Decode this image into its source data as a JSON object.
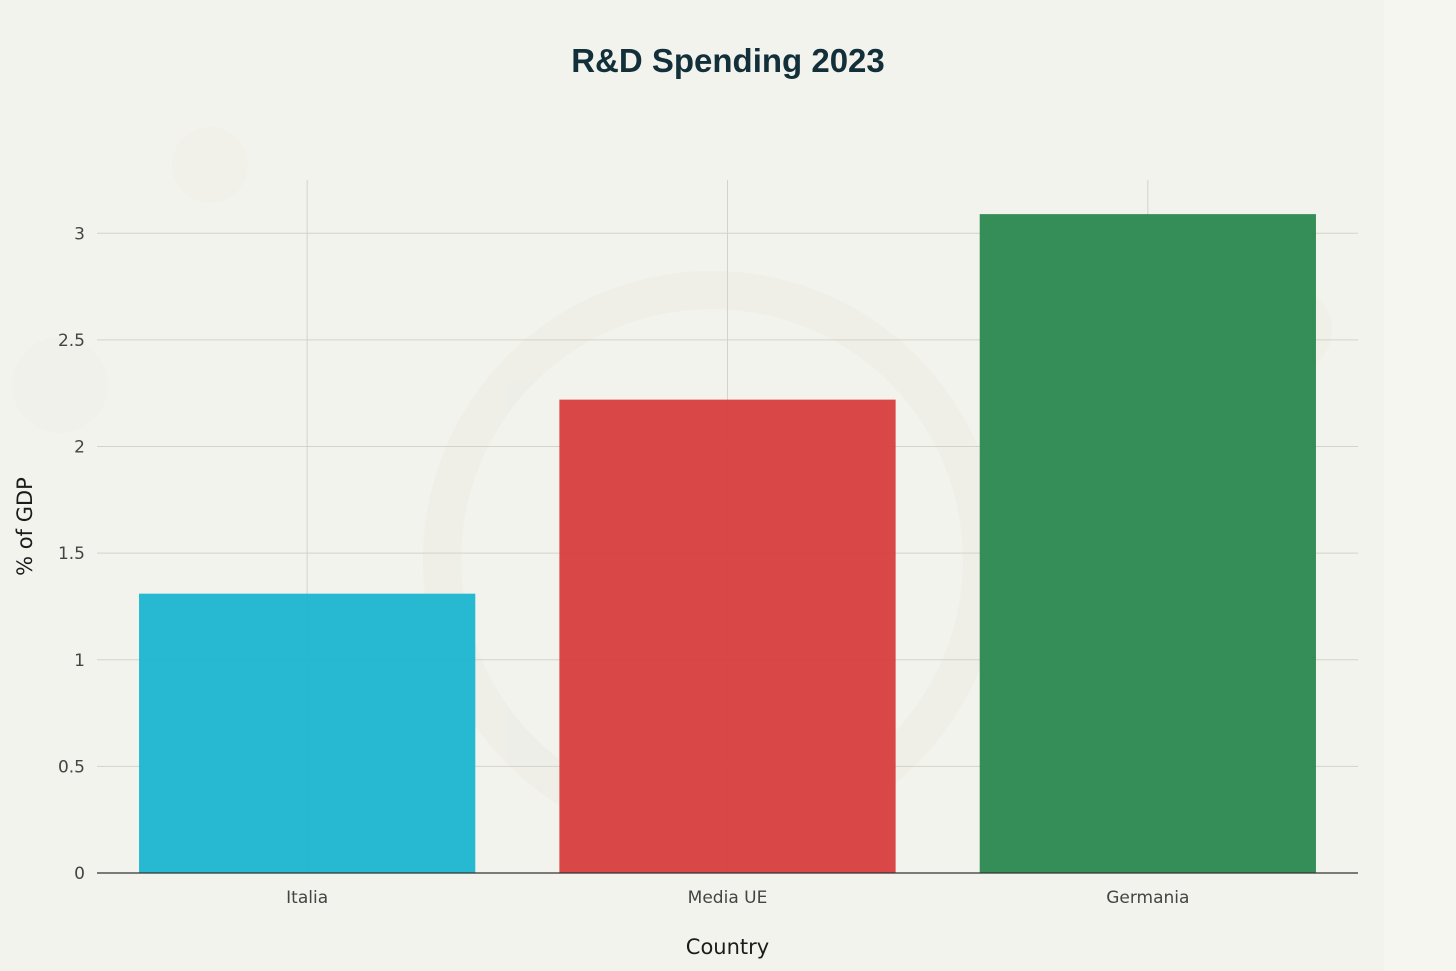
{
  "chart_data": {
    "type": "bar",
    "title": "R&D Spending 2023",
    "xlabel": "Country",
    "ylabel": "% of GDP",
    "categories": [
      "Italia",
      "Media UE",
      "Germania"
    ],
    "values": [
      1.31,
      2.22,
      3.09
    ],
    "colors": [
      "#1fb7cf",
      "#d94141",
      "#2e8a52"
    ],
    "ylim": [
      0,
      3.25
    ],
    "yticks": [
      0,
      0.5,
      1,
      1.5,
      2,
      2.5,
      3
    ],
    "ytick_labels": [
      "0",
      "0.5",
      "1",
      "1.5",
      "2",
      "2.5",
      "3"
    ],
    "grid": true,
    "legend": false
  }
}
